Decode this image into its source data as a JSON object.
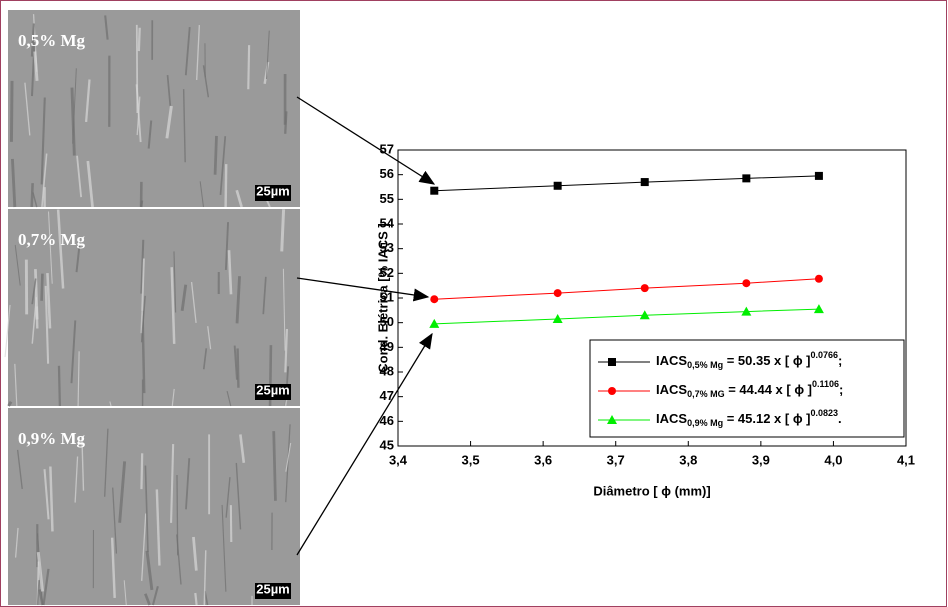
{
  "panels": [
    {
      "label": "0,5% Mg",
      "scale": "25µm"
    },
    {
      "label": "0,7% Mg",
      "scale": "25µm"
    },
    {
      "label": "0,9% Mg",
      "scale": "25µm"
    }
  ],
  "chart_data": {
    "type": "line",
    "x_label": "Diâmetro [ ϕ (mm)]",
    "y_label": "Cond. Elétrica [% IACS ]",
    "x": [
      3.45,
      3.62,
      3.74,
      3.88,
      3.98
    ],
    "series": [
      {
        "name": {
          "base": "IACS",
          "sub": "0,5% Mg",
          "formula": " = 50.35 x [ ϕ ]",
          "exponent": "0.0766",
          "end": ";"
        },
        "color": "#000000",
        "marker": "square",
        "values": [
          55.35,
          55.55,
          55.7,
          55.85,
          55.95
        ]
      },
      {
        "name": {
          "base": "IACS",
          "sub": "0,7% MG",
          "formula": " = 44.44 x [ ϕ ]",
          "exponent": "0.1106",
          "end": ";"
        },
        "color": "#ff0000",
        "marker": "circle",
        "values": [
          50.95,
          51.2,
          51.4,
          51.6,
          51.78
        ]
      },
      {
        "name": {
          "base": "IACS",
          "sub": "0,9% Mg",
          "formula": " = 45.12 x [ ϕ ]",
          "exponent": "0.0823",
          "end": "."
        },
        "color": "#00ee00",
        "marker": "triangle",
        "values": [
          49.95,
          50.15,
          50.3,
          50.45,
          50.55
        ]
      }
    ],
    "xlim": [
      3.4,
      4.1
    ],
    "ylim": [
      45,
      57
    ],
    "xticks": [
      {
        "value": 3.4,
        "label": "3,4"
      },
      {
        "value": 3.5,
        "label": "3,5"
      },
      {
        "value": 3.6,
        "label": "3,6"
      },
      {
        "value": 3.7,
        "label": "3,7"
      },
      {
        "value": 3.8,
        "label": "3,8"
      },
      {
        "value": 3.9,
        "label": "3,9"
      },
      {
        "value": 4.0,
        "label": "4,0"
      },
      {
        "value": 4.1,
        "label": "4,1"
      }
    ],
    "yticks": [
      45,
      46,
      47,
      48,
      49,
      50,
      51,
      52,
      53,
      54,
      55,
      56,
      57
    ]
  }
}
